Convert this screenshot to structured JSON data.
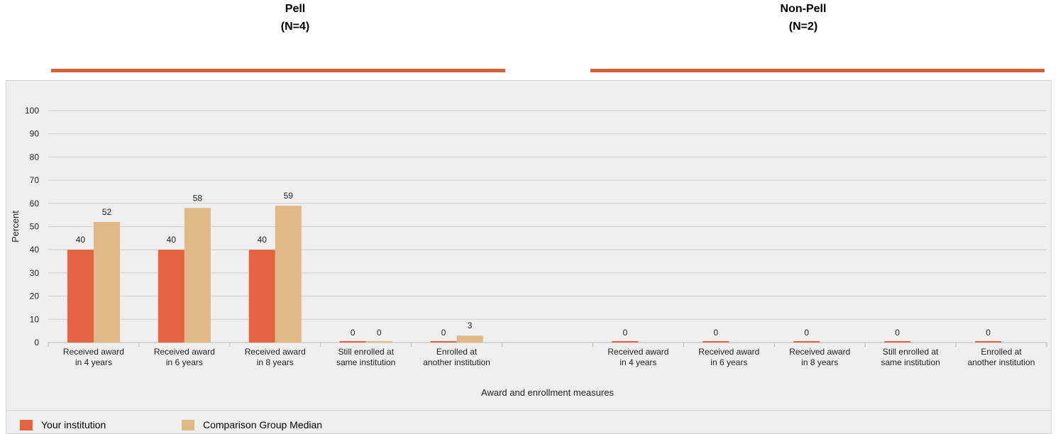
{
  "groups": [
    {
      "title": "Pell",
      "subtitle": "(N=4)"
    },
    {
      "title": "Non-Pell",
      "subtitle": "(N=2)"
    }
  ],
  "colors": {
    "your_institution": "#e46341",
    "comparison": "#e0b987",
    "accent_line": "#d2603a",
    "grid": "#cfcfcf",
    "panel": "#efefef"
  },
  "chart_data": {
    "type": "bar",
    "xlabel": "Award and enrollment measures",
    "ylabel": "Percent",
    "ylim": [
      0,
      100
    ],
    "yticks": [
      0,
      10,
      20,
      30,
      40,
      50,
      60,
      70,
      80,
      90,
      100
    ],
    "grid": true,
    "legend_position": "bottom-left",
    "categories": [
      [
        "Received award",
        "in 4 years"
      ],
      [
        "Received award",
        "in 6 years"
      ],
      [
        "Received award",
        "in 8 years"
      ],
      [
        "Still enrolled at",
        "same institution"
      ],
      [
        "Enrolled at",
        "another institution"
      ],
      [
        "",
        ""
      ],
      [
        "Received award",
        "in 4 years"
      ],
      [
        "Received award",
        "in 6 years"
      ],
      [
        "Received award",
        "in 8 years"
      ],
      [
        "Still enrolled at",
        "same institution"
      ],
      [
        "Enrolled at",
        "another institution"
      ]
    ],
    "series": [
      {
        "name": "Your institution",
        "color": "#e46341",
        "values": [
          40,
          40,
          40,
          0,
          0,
          null,
          0,
          0,
          0,
          0,
          0
        ],
        "labels": [
          "40",
          "40",
          "40",
          "0",
          "0",
          null,
          "0",
          "0",
          "0",
          "0",
          "0"
        ]
      },
      {
        "name": "Comparison Group Median",
        "color": "#e0b987",
        "values": [
          52,
          58,
          59,
          0,
          3,
          null,
          null,
          null,
          null,
          null,
          null
        ],
        "labels": [
          "52",
          "58",
          "59",
          "0",
          "3",
          null,
          null,
          null,
          null,
          null,
          null
        ]
      }
    ]
  }
}
